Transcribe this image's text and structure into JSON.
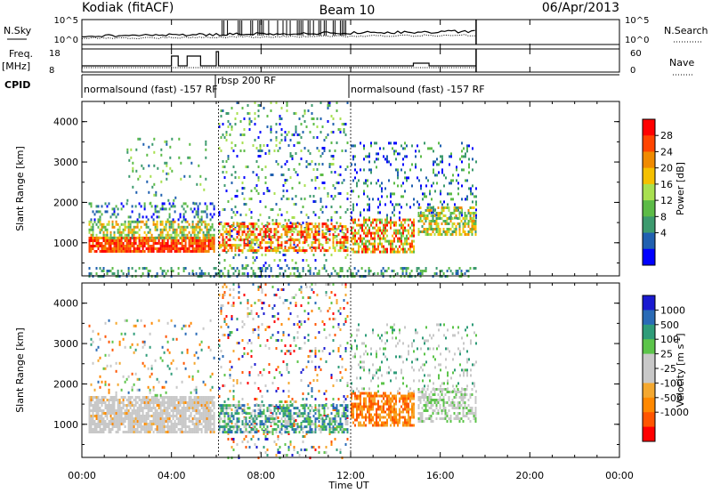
{
  "header": {
    "station": "Kodiak (fitACF)",
    "beam": "Beam 10",
    "date": "06/Apr/2013"
  },
  "colors": {
    "power_scale": [
      "#0000ff",
      "#2060b0",
      "#3c9a6e",
      "#5cbb47",
      "#a8e050",
      "#f5c000",
      "#f08a00",
      "#ff4400",
      "#ff0000"
    ],
    "velocity_scale": [
      "#ff0000",
      "#ff5500",
      "#ff8800",
      "#f4a830",
      "#c8c8c8",
      "#c8c8c8",
      "#5cc44a",
      "#2f9c79",
      "#2a6bb6",
      "#1a1ad0"
    ]
  },
  "chart_data": [
    {
      "type": "line",
      "panel": "noise",
      "left_label": "N.Sky",
      "right_label": "N.Search",
      "yticks_left": [
        "10^5",
        "10^0"
      ],
      "yticks_right": [
        "10^5",
        "10^0"
      ],
      "y_scale": "log",
      "ylim": [
        1,
        100000
      ]
    },
    {
      "type": "line",
      "panel": "frequency",
      "left_label": "Freq.",
      "left_unit": "[MHz]",
      "right_label": "Nave",
      "yticks_left": [
        "18",
        "8"
      ],
      "yticks_right": [
        "60",
        "0"
      ],
      "ylim_left": [
        8,
        18
      ],
      "ylim_right": [
        0,
        60
      ]
    },
    {
      "type": "table",
      "panel": "cpid",
      "label": "CPID",
      "segments": [
        {
          "start": 0,
          "end": 6.1,
          "text": "normalsound (fast) -157 RF"
        },
        {
          "start": 6.1,
          "end": 12.0,
          "text": "rbsp 200 RF"
        },
        {
          "start": 12.0,
          "end": 17.6,
          "text": "normalsound (fast) -157 RF"
        }
      ]
    },
    {
      "type": "heatmap",
      "panel": "power",
      "ylabel": "Slant Range [km]",
      "xlim": [
        0,
        24
      ],
      "ylim": [
        180,
        4500
      ],
      "yticks": [
        "1000",
        "2000",
        "3000",
        "4000"
      ],
      "colorbar_label": "Power [dB]",
      "colorbar_ticks": [
        "28",
        "24",
        "20",
        "16",
        "12",
        "8",
        "4"
      ],
      "colorbar_range": [
        0,
        30
      ]
    },
    {
      "type": "heatmap",
      "panel": "velocity",
      "ylabel": "Slant Range [km]",
      "xlabel": "Time UT",
      "xlim": [
        0,
        24
      ],
      "ylim": [
        180,
        4500
      ],
      "xticks": [
        "00:00",
        "04:00",
        "08:00",
        "12:00",
        "16:00",
        "20:00",
        "00:00"
      ],
      "yticks": [
        "1000",
        "2000",
        "3000",
        "4000"
      ],
      "colorbar_label": "Velocity [m s",
      "colorbar_label_sup": "-1",
      "colorbar_label_end": "]",
      "colorbar_ticks": [
        "1000",
        "500",
        "100",
        "25",
        "-25",
        "-100",
        "-500",
        "-1000"
      ]
    }
  ]
}
